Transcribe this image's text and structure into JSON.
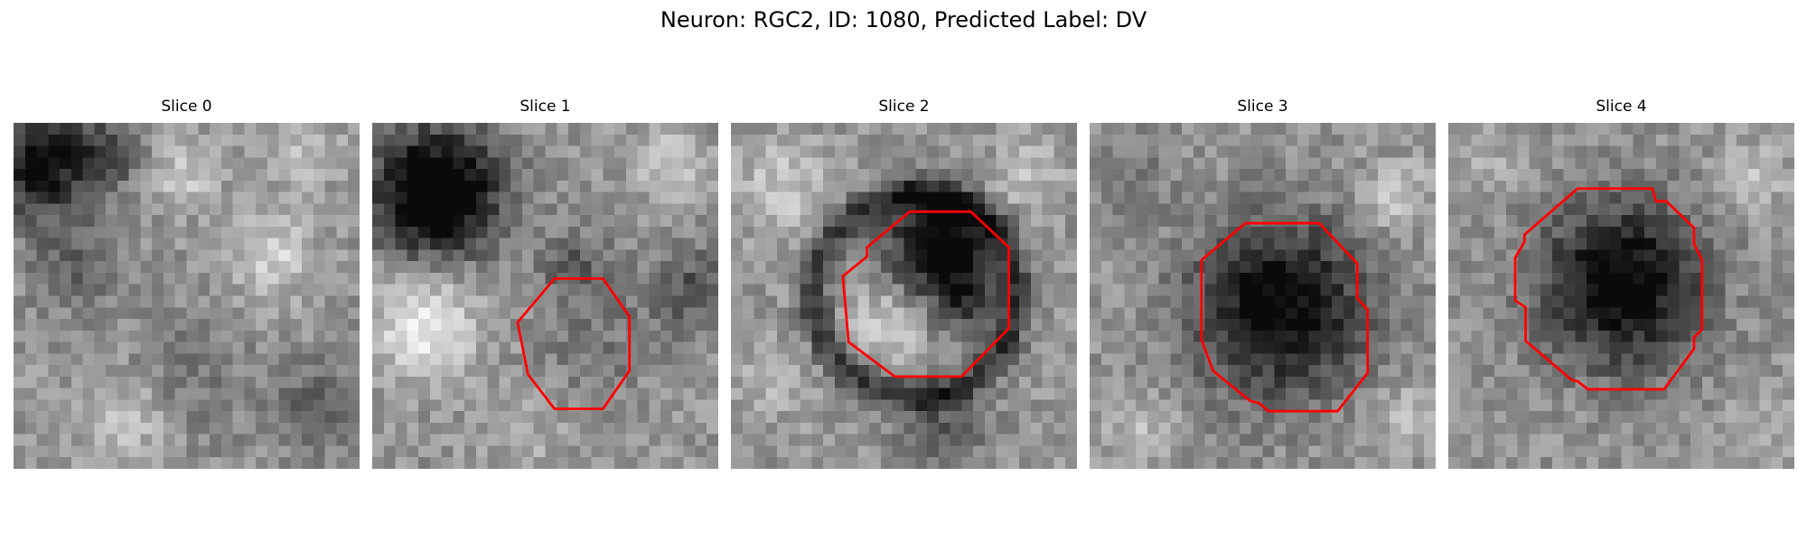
{
  "figure": {
    "title": "Neuron: RGC2, ID: 1080, Predicted Label: DV"
  },
  "contour_color": "#ff0000",
  "panels": [
    {
      "title": "Slice 0",
      "has_contour": false
    },
    {
      "title": "Slice 1",
      "has_contour": true
    },
    {
      "title": "Slice 2",
      "has_contour": true
    },
    {
      "title": "Slice 3",
      "has_contour": true
    },
    {
      "title": "Slice 4",
      "has_contour": true
    }
  ]
}
